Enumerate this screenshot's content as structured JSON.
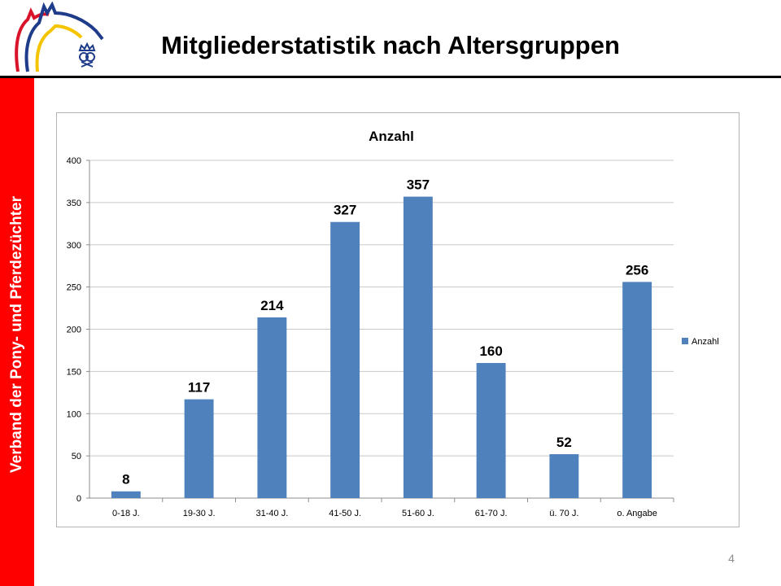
{
  "slide": {
    "title": "Mitgliederstatistik nach Altersgruppen",
    "sidebar_text": "Verband der Pony-  und Pferdezüchter",
    "page_number": "4"
  },
  "colors": {
    "bar": "#4f81bd",
    "sidebar": "#ff0000",
    "logo_red": "#d9142a",
    "logo_blue": "#1f3c8a",
    "logo_yellow": "#f5c400"
  },
  "logo": {
    "icon": "horse-heads-crown-logo"
  },
  "chart_data": {
    "type": "bar",
    "title": "Anzahl",
    "categories": [
      "0-18 J.",
      "19-30 J.",
      "31-40 J.",
      "41-50 J.",
      "51-60 J.",
      "61-70 J.",
      "ü. 70 J.",
      "o. Angabe"
    ],
    "series": [
      {
        "name": "Anzahl",
        "values": [
          8,
          117,
          214,
          327,
          357,
          160,
          52,
          256
        ]
      }
    ],
    "ylim": [
      0,
      400
    ],
    "yticks": [
      0,
      50,
      100,
      150,
      200,
      250,
      300,
      350,
      400
    ],
    "grid": true,
    "legend": "right",
    "data_labels": true
  }
}
